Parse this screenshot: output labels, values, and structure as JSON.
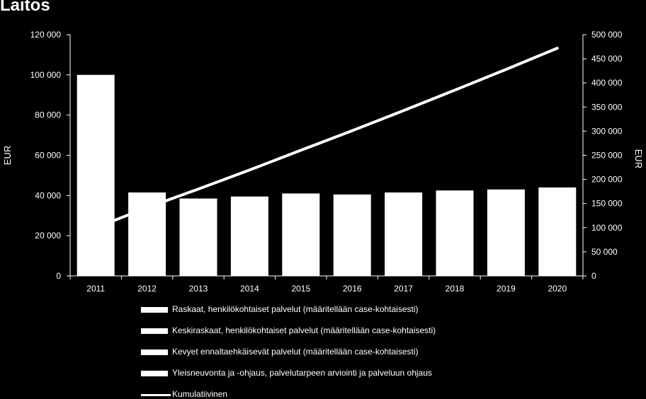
{
  "title": "Laitos",
  "chart_data": {
    "type": "bar",
    "categories": [
      "2011",
      "2012",
      "2013",
      "2014",
      "2015",
      "2016",
      "2017",
      "2018",
      "2019",
      "2020"
    ],
    "series": [
      {
        "name": "Raskaat, henkilökohtaiset palvelut (määritellään case-kohtaisesti)",
        "type": "bar",
        "axis": "left",
        "values": [
          100000,
          41500,
          38500,
          39500,
          41000,
          40500,
          41500,
          42500,
          43000,
          44000
        ]
      },
      {
        "name": "Kumulatiivinen",
        "type": "line",
        "axis": "right",
        "values": [
          100000,
          141500,
          180000,
          219500,
          260500,
          301000,
          342500,
          385000,
          428000,
          472000
        ]
      }
    ],
    "legend": [
      {
        "label": "Raskaat, henkilökohtaiset palvelut (määritellään case-kohtaisesti)",
        "kind": "bar"
      },
      {
        "label": "Keskiraskaat, henkilökohtaiset palvelut (määritellään case-kohtaisesti)",
        "kind": "bar"
      },
      {
        "label": "Kevyet ennaltaehkäisevät palvelut (määritellään case-kohtaisesti)",
        "kind": "bar"
      },
      {
        "label": "Yleisneuvonta ja -ohjaus, palvelutarpeen arviointi ja palveluun ohjaus",
        "kind": "bar"
      },
      {
        "label": "Kumulatiivinen",
        "kind": "line"
      }
    ],
    "ylabel_left": "EUR",
    "ylabel_right": "EUR",
    "ylim_left": [
      0,
      120000
    ],
    "ylim_right": [
      0,
      500000
    ],
    "yticks_left": [
      "0",
      "20 000",
      "40 000",
      "60 000",
      "80 000",
      "100 000",
      "120 000"
    ],
    "yticks_right": [
      "0",
      "50 000",
      "100 000",
      "150 000",
      "200 000",
      "250 000",
      "300 000",
      "350 000",
      "400 000",
      "450 000",
      "500 000"
    ],
    "grid": false,
    "legend_placement": "bottom",
    "colors": {
      "background": "#000000",
      "foreground": "#ffffff"
    }
  }
}
